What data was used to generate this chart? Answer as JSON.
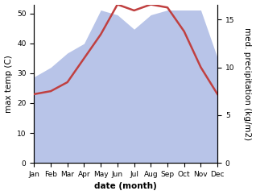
{
  "months": [
    "Jan",
    "Feb",
    "Mar",
    "Apr",
    "May",
    "Jun",
    "Jul",
    "Aug",
    "Sep",
    "Oct",
    "Nov",
    "Dec"
  ],
  "month_x": [
    1,
    2,
    3,
    4,
    5,
    6,
    7,
    8,
    9,
    10,
    11,
    12
  ],
  "temperature": [
    23,
    24,
    27,
    35,
    43,
    53,
    51,
    53,
    52,
    44,
    32,
    23
  ],
  "precipitation": [
    9,
    10,
    11.5,
    12.5,
    16,
    15.5,
    14,
    15.5,
    16,
    16,
    16,
    11
  ],
  "temp_color": "#c04040",
  "precip_fill_color": "#b8c4e8",
  "background_color": "#ffffff",
  "ylabel_left": "max temp (C)",
  "ylabel_right": "med. precipitation (kg/m2)",
  "xlabel": "date (month)",
  "ylim_left": [
    0,
    53
  ],
  "ylim_right": [
    0,
    16.59
  ],
  "label_fontsize": 7.5,
  "tick_fontsize": 6.5
}
